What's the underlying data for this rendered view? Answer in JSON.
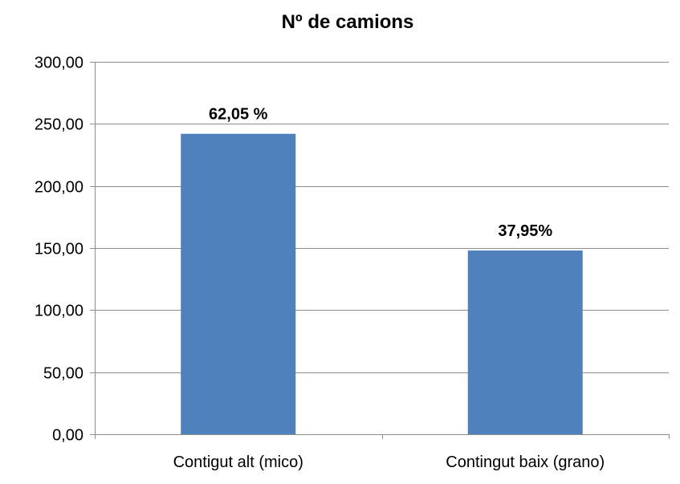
{
  "chart_data": {
    "type": "bar",
    "title": "Nº de camions",
    "xlabel": "",
    "ylabel": "",
    "categories": [
      "Contigut alt (mico)",
      "Contingut baix (grano)"
    ],
    "values": [
      242,
      148
    ],
    "data_labels": [
      "62,05 %",
      "37,95%"
    ],
    "ylim": [
      0,
      300
    ],
    "yticks": [
      0,
      50,
      100,
      150,
      200,
      250,
      300
    ],
    "ytick_labels": [
      "0,00",
      "50,00",
      "100,00",
      "150,00",
      "200,00",
      "250,00",
      "300,00"
    ],
    "grid": true,
    "legend": "none",
    "bar_color": "#4f81bd"
  }
}
